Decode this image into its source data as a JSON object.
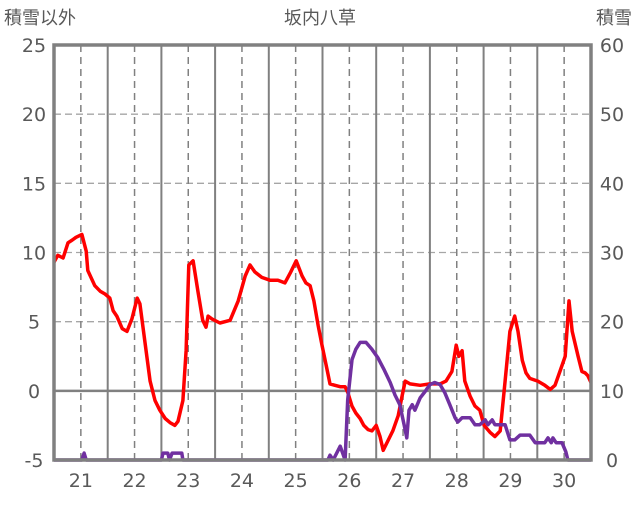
{
  "chart_data": {
    "type": "line",
    "title": "坂内八草",
    "ylabel_left": "積雪以外",
    "ylabel_right": "積雪",
    "xlim": [
      20.5,
      30.5
    ],
    "ylim_left": [
      -5,
      25
    ],
    "ylim_right": [
      0,
      60
    ],
    "x_ticks": [
      "21",
      "22",
      "23",
      "24",
      "25",
      "26",
      "27",
      "28",
      "29",
      "30"
    ],
    "y_ticks_left": [
      "25",
      "20",
      "15",
      "10",
      "5",
      "0",
      "-5"
    ],
    "y_ticks_right": [
      "60",
      "50",
      "40",
      "30",
      "20",
      "10",
      "0"
    ],
    "grid": true,
    "colors": {
      "temp": "#ff0000",
      "snow": "#7030a0",
      "axis": "#808080"
    },
    "series": [
      {
        "name": "積雪以外",
        "axis": "left",
        "color": "#ff0000",
        "points": [
          [
            20.5,
            9.3
          ],
          [
            20.57,
            9.8
          ],
          [
            20.67,
            9.6
          ],
          [
            20.76,
            10.7
          ],
          [
            20.84,
            10.9
          ],
          [
            20.91,
            11.1
          ],
          [
            21.02,
            11.3
          ],
          [
            21.1,
            10.1
          ],
          [
            21.13,
            8.7
          ],
          [
            21.26,
            7.6
          ],
          [
            21.36,
            7.2
          ],
          [
            21.45,
            7.0
          ],
          [
            21.54,
            6.7
          ],
          [
            21.6,
            5.8
          ],
          [
            21.67,
            5.4
          ],
          [
            21.77,
            4.5
          ],
          [
            21.86,
            4.3
          ],
          [
            21.95,
            5.2
          ],
          [
            22.05,
            6.7
          ],
          [
            22.1,
            6.3
          ],
          [
            22.19,
            3.6
          ],
          [
            22.29,
            0.7
          ],
          [
            22.38,
            -0.7
          ],
          [
            22.47,
            -1.4
          ],
          [
            22.57,
            -2.0
          ],
          [
            22.66,
            -2.3
          ],
          [
            22.75,
            -2.5
          ],
          [
            22.81,
            -2.2
          ],
          [
            22.9,
            -0.7
          ],
          [
            22.96,
            2.9
          ],
          [
            23.01,
            9.1
          ],
          [
            23.09,
            9.4
          ],
          [
            23.18,
            7.2
          ],
          [
            23.27,
            5.1
          ],
          [
            23.33,
            4.6
          ],
          [
            23.37,
            5.4
          ],
          [
            23.44,
            5.2
          ],
          [
            23.59,
            4.9
          ],
          [
            23.78,
            5.1
          ],
          [
            23.93,
            6.5
          ],
          [
            24.06,
            8.3
          ],
          [
            24.15,
            9.1
          ],
          [
            24.24,
            8.6
          ],
          [
            24.37,
            8.2
          ],
          [
            24.52,
            8.0
          ],
          [
            24.67,
            8.0
          ],
          [
            24.8,
            7.8
          ],
          [
            24.91,
            8.6
          ],
          [
            25.01,
            9.4
          ],
          [
            25.12,
            8.3
          ],
          [
            25.19,
            7.8
          ],
          [
            25.27,
            7.6
          ],
          [
            25.34,
            6.5
          ],
          [
            25.42,
            4.7
          ],
          [
            25.49,
            3.3
          ],
          [
            25.57,
            1.8
          ],
          [
            25.64,
            0.5
          ],
          [
            25.73,
            0.4
          ],
          [
            25.83,
            0.3
          ],
          [
            25.92,
            0.3
          ],
          [
            25.97,
            -0.1
          ],
          [
            26.05,
            -1.1
          ],
          [
            26.12,
            -1.6
          ],
          [
            26.2,
            -2.0
          ],
          [
            26.27,
            -2.5
          ],
          [
            26.35,
            -2.8
          ],
          [
            26.42,
            -2.9
          ],
          [
            26.5,
            -2.5
          ],
          [
            26.57,
            -3.3
          ],
          [
            26.63,
            -4.3
          ],
          [
            26.72,
            -3.6
          ],
          [
            26.81,
            -2.9
          ],
          [
            26.91,
            -1.8
          ],
          [
            26.98,
            -0.4
          ],
          [
            27.04,
            0.7
          ],
          [
            27.13,
            0.5
          ],
          [
            27.32,
            0.4
          ],
          [
            27.5,
            0.5
          ],
          [
            27.69,
            0.5
          ],
          [
            27.8,
            0.7
          ],
          [
            27.91,
            1.4
          ],
          [
            27.99,
            3.3
          ],
          [
            28.04,
            2.5
          ],
          [
            28.1,
            2.9
          ],
          [
            28.15,
            0.7
          ],
          [
            28.25,
            -0.4
          ],
          [
            28.34,
            -1.1
          ],
          [
            28.43,
            -1.4
          ],
          [
            28.51,
            -2.5
          ],
          [
            28.62,
            -3.0
          ],
          [
            28.71,
            -3.3
          ],
          [
            28.81,
            -2.9
          ],
          [
            28.9,
            0.7
          ],
          [
            28.99,
            4.3
          ],
          [
            29.08,
            5.4
          ],
          [
            29.14,
            4.3
          ],
          [
            29.22,
            2.2
          ],
          [
            29.29,
            1.3
          ],
          [
            29.36,
            0.9
          ],
          [
            29.51,
            0.7
          ],
          [
            29.64,
            0.4
          ],
          [
            29.74,
            0.1
          ],
          [
            29.83,
            0.4
          ],
          [
            29.92,
            1.4
          ],
          [
            30.02,
            2.5
          ],
          [
            30.09,
            6.5
          ],
          [
            30.15,
            4.3
          ],
          [
            30.26,
            2.5
          ],
          [
            30.33,
            1.4
          ],
          [
            30.39,
            1.3
          ],
          [
            30.44,
            1.1
          ],
          [
            30.5,
            0.6
          ]
        ]
      },
      {
        "name": "積雪",
        "axis": "right",
        "color": "#7030a0",
        "points": [
          [
            20.5,
            0
          ],
          [
            21.02,
            0
          ],
          [
            21.06,
            1
          ],
          [
            21.1,
            0
          ],
          [
            22.5,
            0
          ],
          [
            22.53,
            1
          ],
          [
            22.62,
            1
          ],
          [
            22.65,
            0
          ],
          [
            22.7,
            1
          ],
          [
            22.88,
            1
          ],
          [
            22.9,
            0
          ],
          [
            25.6,
            0
          ],
          [
            25.64,
            0.7
          ],
          [
            25.7,
            0
          ],
          [
            25.83,
            2
          ],
          [
            25.92,
            0
          ],
          [
            25.97,
            8.7
          ],
          [
            26.05,
            14.5
          ],
          [
            26.12,
            16
          ],
          [
            26.2,
            17
          ],
          [
            26.31,
            17
          ],
          [
            26.42,
            16
          ],
          [
            26.53,
            14.8
          ],
          [
            26.65,
            13
          ],
          [
            26.76,
            11.2
          ],
          [
            26.85,
            9.4
          ],
          [
            26.94,
            8
          ],
          [
            27.02,
            5.1
          ],
          [
            27.07,
            3.2
          ],
          [
            27.11,
            7.2
          ],
          [
            27.17,
            8
          ],
          [
            27.22,
            7.2
          ],
          [
            27.32,
            9
          ],
          [
            27.41,
            9.9
          ],
          [
            27.5,
            10.9
          ],
          [
            27.59,
            11.2
          ],
          [
            27.69,
            10.9
          ],
          [
            27.78,
            9.7
          ],
          [
            27.87,
            8
          ],
          [
            27.97,
            6.1
          ],
          [
            28.02,
            5.5
          ],
          [
            28.1,
            6.1
          ],
          [
            28.25,
            6.1
          ],
          [
            28.34,
            5.1
          ],
          [
            28.43,
            5.1
          ],
          [
            28.53,
            5.8
          ],
          [
            28.58,
            5.1
          ],
          [
            28.66,
            5.8
          ],
          [
            28.71,
            5.1
          ],
          [
            28.9,
            5.1
          ],
          [
            28.99,
            2.9
          ],
          [
            29.08,
            2.9
          ],
          [
            29.18,
            3.6
          ],
          [
            29.36,
            3.6
          ],
          [
            29.46,
            2.5
          ],
          [
            29.64,
            2.5
          ],
          [
            29.7,
            3.2
          ],
          [
            29.76,
            2.5
          ],
          [
            29.79,
            3.2
          ],
          [
            29.85,
            2.5
          ],
          [
            29.96,
            2.5
          ],
          [
            30.03,
            1.2
          ],
          [
            30.07,
            0
          ],
          [
            30.5,
            0
          ]
        ]
      }
    ]
  }
}
